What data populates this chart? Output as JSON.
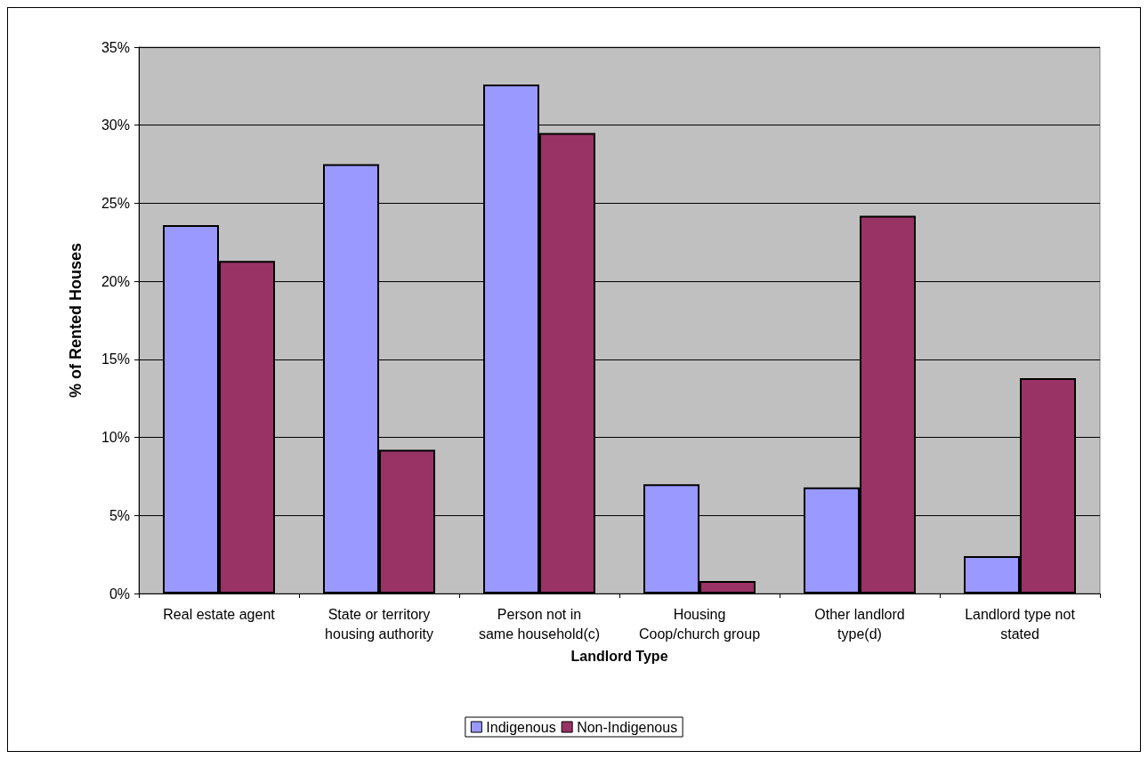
{
  "chart_data": {
    "type": "bar",
    "xlabel": "Landlord Type",
    "ylabel": "% of Rented Houses",
    "categories": [
      "Real estate agent",
      "State or territory\nhousing authority",
      "Person not in\nsame household(c)",
      "Housing\nCoop/church group",
      "Other landlord\ntype(d)",
      "Landlord type not\nstated"
    ],
    "series": [
      {
        "name": "Indigenous",
        "color": "#9999ff",
        "values": [
          23.6,
          27.5,
          32.6,
          7.0,
          6.8,
          2.4
        ]
      },
      {
        "name": "Non-Indigenous",
        "color": "#993366",
        "values": [
          21.3,
          9.2,
          29.5,
          0.8,
          24.2,
          13.8
        ]
      }
    ],
    "ylim": [
      0,
      35
    ],
    "yticks": [
      {
        "value": 0,
        "label": "0%"
      },
      {
        "value": 5,
        "label": "5%"
      },
      {
        "value": 10,
        "label": "10%"
      },
      {
        "value": 15,
        "label": "15%"
      },
      {
        "value": 20,
        "label": "20%"
      },
      {
        "value": 25,
        "label": "25%"
      },
      {
        "value": 30,
        "label": "30%"
      },
      {
        "value": 35,
        "label": "35%"
      }
    ],
    "grid": "y",
    "legend": "bottom"
  }
}
